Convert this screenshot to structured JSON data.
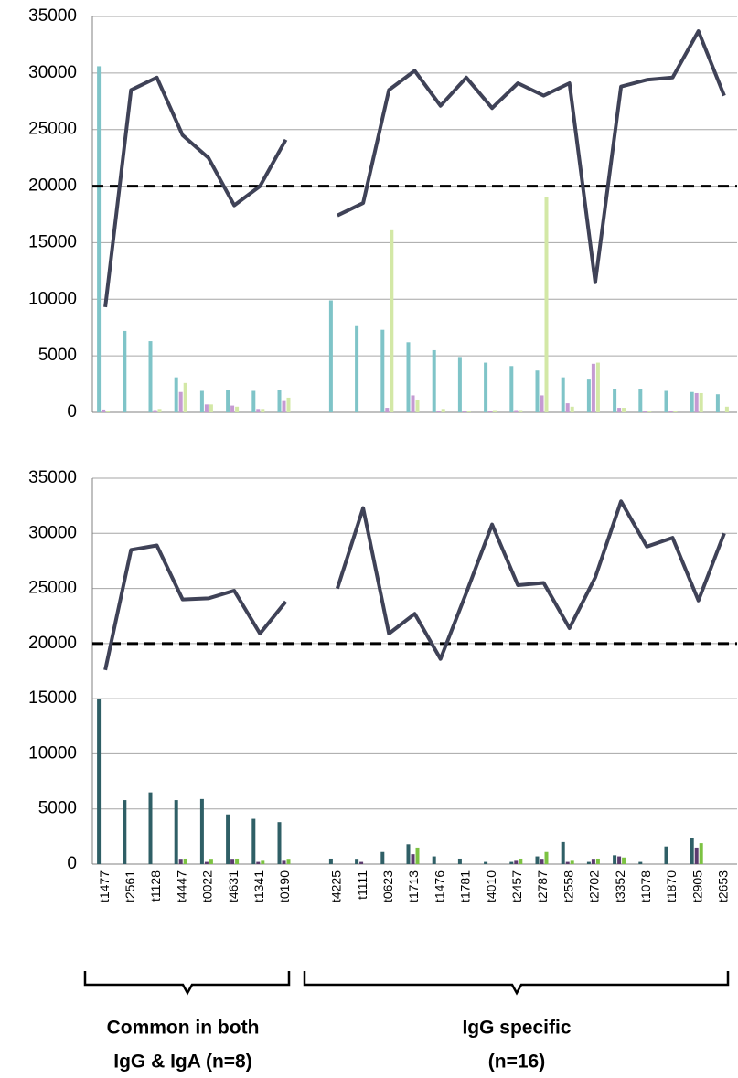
{
  "chart_data": [
    {
      "type": "bar",
      "ylim": [
        0,
        35000
      ],
      "yticks": [
        0,
        5000,
        10000,
        15000,
        20000,
        25000,
        30000,
        35000
      ],
      "grid": true,
      "threshold": 20000,
      "series": [
        {
          "type": "bar",
          "color": "#7fc4c8",
          "values": [
            30600,
            7200,
            6300,
            3100,
            1900,
            2000,
            1900,
            2000,
            null,
            9900,
            7700,
            7300,
            6200,
            5500,
            4900,
            4400,
            4100,
            3700,
            3100,
            2900,
            2100,
            2100,
            1900,
            1800,
            1600
          ]
        },
        {
          "type": "bar",
          "color": "#c59ad2",
          "values": [
            250,
            0,
            200,
            1800,
            700,
            600,
            300,
            1000,
            null,
            0,
            0,
            400,
            1500,
            100,
            100,
            100,
            200,
            1500,
            800,
            4300,
            400,
            100,
            100,
            1700,
            0
          ]
        },
        {
          "type": "bar",
          "color": "#d3e8a6",
          "values": [
            100,
            0,
            300,
            2600,
            700,
            500,
            300,
            1300,
            null,
            0,
            0,
            16100,
            1100,
            300,
            100,
            200,
            200,
            19000,
            500,
            4400,
            400,
            100,
            100,
            1700,
            500
          ]
        },
        {
          "type": "line",
          "color": "#3f4257",
          "values": [
            9300,
            28500,
            29600,
            24500,
            22500,
            18300,
            20000,
            24100,
            null,
            17400,
            18500,
            28500,
            30200,
            27100,
            29600,
            26900,
            29100,
            28000,
            29100,
            11500,
            28800,
            29400,
            29600,
            33700,
            28000
          ]
        }
      ]
    },
    {
      "type": "bar",
      "ylim": [
        0,
        35000
      ],
      "yticks": [
        0,
        5000,
        10000,
        15000,
        20000,
        25000,
        30000,
        35000
      ],
      "grid": true,
      "threshold": 20000,
      "categories": [
        "t1477",
        "t2561",
        "t1128",
        "t4447",
        "t0022",
        "t4631",
        "t1341",
        "t0190",
        null,
        "t4225",
        "t1111",
        "t0623",
        "t1713",
        "t1476",
        "t1781",
        "t4010",
        "t2457",
        "t2787",
        "t2558",
        "t2702",
        "t3352",
        "t1078",
        "t1870",
        "t2905",
        "t2653"
      ],
      "series": [
        {
          "type": "bar",
          "color": "#2f5f66",
          "values": [
            15000,
            5800,
            6500,
            5800,
            5900,
            4500,
            4100,
            3800,
            null,
            500,
            400,
            1100,
            1800,
            700,
            500,
            200,
            200,
            700,
            2000,
            200,
            800,
            200,
            1600,
            2400,
            0
          ]
        },
        {
          "type": "bar",
          "color": "#5b3b6e",
          "values": [
            0,
            0,
            0,
            400,
            200,
            400,
            200,
            300,
            null,
            0,
            200,
            0,
            900,
            0,
            0,
            0,
            300,
            400,
            200,
            400,
            700,
            0,
            0,
            1500,
            0
          ]
        },
        {
          "type": "bar",
          "color": "#7cc242",
          "values": [
            0,
            0,
            0,
            500,
            400,
            500,
            300,
            400,
            null,
            0,
            0,
            0,
            1500,
            0,
            0,
            0,
            500,
            1100,
            300,
            500,
            600,
            0,
            0,
            1900,
            0
          ]
        },
        {
          "type": "line",
          "color": "#3f4257",
          "values": [
            17600,
            28500,
            28900,
            24000,
            24100,
            24800,
            20900,
            23800,
            null,
            25000,
            32300,
            20900,
            22700,
            18600,
            24600,
            30800,
            25300,
            25500,
            21400,
            26000,
            32900,
            28800,
            29600,
            23900,
            30000
          ]
        }
      ]
    }
  ],
  "annotations": [
    [
      "Common in both",
      "IgG & IgA (n=8)"
    ],
    [
      "IgG specific",
      "(n=16)"
    ]
  ]
}
